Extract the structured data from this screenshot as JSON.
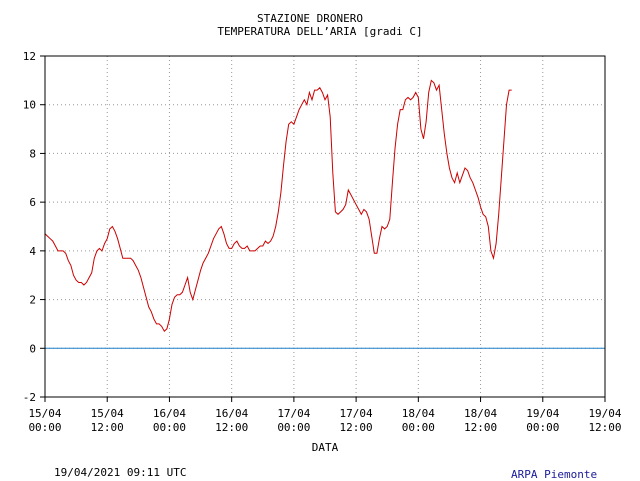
{
  "header": {
    "station": "STAZIONE DRONERO",
    "subtitle": "TEMPERATURA DELL’ARIA [gradi C]"
  },
  "footer": {
    "timestamp": "19/04/2021 09:11 UTC",
    "credit": "ARPA Piemonte"
  },
  "colors": {
    "series": "#cc0000",
    "zero_line": "#1f7fc8",
    "grid": "#999999"
  },
  "chart_data": {
    "type": "line",
    "title": "STAZIONE DRONERO",
    "subtitle": "TEMPERATURA DELL’ARIA [gradi C]",
    "xlabel": "DATA",
    "ylabel": "",
    "xlim": [
      0,
      108
    ],
    "ylim": [
      -2,
      12
    ],
    "grid": true,
    "yticks": [
      -2,
      0,
      2,
      4,
      6,
      8,
      10,
      12
    ],
    "xticks": [
      {
        "x": 0,
        "line1": "15/04",
        "line2": "00:00"
      },
      {
        "x": 12,
        "line1": "15/04",
        "line2": "12:00"
      },
      {
        "x": 24,
        "line1": "16/04",
        "line2": "00:00"
      },
      {
        "x": 36,
        "line1": "16/04",
        "line2": "12:00"
      },
      {
        "x": 48,
        "line1": "17/04",
        "line2": "00:00"
      },
      {
        "x": 60,
        "line1": "17/04",
        "line2": "12:00"
      },
      {
        "x": 72,
        "line1": "18/04",
        "line2": "00:00"
      },
      {
        "x": 84,
        "line1": "18/04",
        "line2": "12:00"
      },
      {
        "x": 96,
        "line1": "19/04",
        "line2": "00:00"
      },
      {
        "x": 108,
        "line1": "19/04",
        "line2": "12:00"
      }
    ],
    "reference_line": 0,
    "series": [
      {
        "values": [
          [
            0,
            4.7
          ],
          [
            0.5,
            4.6
          ],
          [
            1,
            4.5
          ],
          [
            1.5,
            4.4
          ],
          [
            2,
            4.2
          ],
          [
            2.5,
            4.0
          ],
          [
            3,
            4.0
          ],
          [
            3.5,
            4.0
          ],
          [
            4,
            3.9
          ],
          [
            4.5,
            3.6
          ],
          [
            5,
            3.4
          ],
          [
            5.5,
            3.0
          ],
          [
            6,
            2.8
          ],
          [
            6.5,
            2.7
          ],
          [
            7,
            2.7
          ],
          [
            7.5,
            2.6
          ],
          [
            8,
            2.7
          ],
          [
            8.5,
            2.9
          ],
          [
            9,
            3.1
          ],
          [
            9.5,
            3.7
          ],
          [
            10,
            4.0
          ],
          [
            10.5,
            4.1
          ],
          [
            11,
            4.0
          ],
          [
            11.5,
            4.3
          ],
          [
            12,
            4.5
          ],
          [
            12.5,
            4.9
          ],
          [
            13,
            5.0
          ],
          [
            13.5,
            4.8
          ],
          [
            14,
            4.5
          ],
          [
            14.5,
            4.1
          ],
          [
            15,
            3.7
          ],
          [
            15.5,
            3.7
          ],
          [
            16,
            3.7
          ],
          [
            16.5,
            3.7
          ],
          [
            17,
            3.6
          ],
          [
            17.5,
            3.4
          ],
          [
            18,
            3.2
          ],
          [
            18.5,
            2.9
          ],
          [
            19,
            2.5
          ],
          [
            19.5,
            2.1
          ],
          [
            20,
            1.7
          ],
          [
            20.5,
            1.5
          ],
          [
            21,
            1.2
          ],
          [
            21.5,
            1.0
          ],
          [
            22,
            1.0
          ],
          [
            22.5,
            0.9
          ],
          [
            23,
            0.7
          ],
          [
            23.5,
            0.8
          ],
          [
            24,
            1.2
          ],
          [
            24.5,
            1.8
          ],
          [
            25,
            2.1
          ],
          [
            25.5,
            2.2
          ],
          [
            26,
            2.2
          ],
          [
            26.5,
            2.3
          ],
          [
            27,
            2.6
          ],
          [
            27.5,
            2.9
          ],
          [
            28,
            2.3
          ],
          [
            28.5,
            2.0
          ],
          [
            29,
            2.4
          ],
          [
            29.5,
            2.8
          ],
          [
            30,
            3.2
          ],
          [
            30.5,
            3.5
          ],
          [
            31,
            3.7
          ],
          [
            31.5,
            3.9
          ],
          [
            32,
            4.2
          ],
          [
            32.5,
            4.5
          ],
          [
            33,
            4.7
          ],
          [
            33.5,
            4.9
          ],
          [
            34,
            5.0
          ],
          [
            34.5,
            4.7
          ],
          [
            35,
            4.3
          ],
          [
            35.5,
            4.1
          ],
          [
            36,
            4.1
          ],
          [
            36.5,
            4.3
          ],
          [
            37,
            4.4
          ],
          [
            37.5,
            4.2
          ],
          [
            38,
            4.1
          ],
          [
            38.5,
            4.1
          ],
          [
            39,
            4.2
          ],
          [
            39.5,
            4.0
          ],
          [
            40,
            4.0
          ],
          [
            40.5,
            4.0
          ],
          [
            41,
            4.1
          ],
          [
            41.5,
            4.2
          ],
          [
            42,
            4.2
          ],
          [
            42.5,
            4.4
          ],
          [
            43,
            4.3
          ],
          [
            43.5,
            4.4
          ],
          [
            44,
            4.6
          ],
          [
            44.5,
            5.0
          ],
          [
            45,
            5.6
          ],
          [
            45.5,
            6.4
          ],
          [
            46,
            7.5
          ],
          [
            46.5,
            8.5
          ],
          [
            47,
            9.2
          ],
          [
            47.5,
            9.3
          ],
          [
            48,
            9.2
          ],
          [
            48.5,
            9.5
          ],
          [
            49,
            9.8
          ],
          [
            49.5,
            10.0
          ],
          [
            50,
            10.2
          ],
          [
            50.5,
            10.0
          ],
          [
            51,
            10.5
          ],
          [
            51.5,
            10.2
          ],
          [
            52,
            10.6
          ],
          [
            52.5,
            10.6
          ],
          [
            53,
            10.7
          ],
          [
            53.5,
            10.5
          ],
          [
            54,
            10.2
          ],
          [
            54.5,
            10.4
          ],
          [
            55,
            9.5
          ],
          [
            55.5,
            7.2
          ],
          [
            56,
            5.6
          ],
          [
            56.5,
            5.5
          ],
          [
            57,
            5.6
          ],
          [
            57.5,
            5.7
          ],
          [
            58,
            5.9
          ],
          [
            58.5,
            6.5
          ],
          [
            59,
            6.3
          ],
          [
            59.5,
            6.1
          ],
          [
            60,
            5.9
          ],
          [
            60.5,
            5.7
          ],
          [
            61,
            5.5
          ],
          [
            61.5,
            5.7
          ],
          [
            62,
            5.6
          ],
          [
            62.5,
            5.3
          ],
          [
            63,
            4.6
          ],
          [
            63.5,
            3.9
          ],
          [
            64,
            3.9
          ],
          [
            64.5,
            4.5
          ],
          [
            65,
            5.0
          ],
          [
            65.5,
            4.9
          ],
          [
            66,
            5.0
          ],
          [
            66.5,
            5.3
          ],
          [
            67,
            6.8
          ],
          [
            67.5,
            8.2
          ],
          [
            68,
            9.2
          ],
          [
            68.5,
            9.8
          ],
          [
            69,
            9.8
          ],
          [
            69.5,
            10.2
          ],
          [
            70,
            10.3
          ],
          [
            70.5,
            10.2
          ],
          [
            71,
            10.3
          ],
          [
            71.5,
            10.5
          ],
          [
            72,
            10.3
          ],
          [
            72.5,
            9.0
          ],
          [
            73,
            8.6
          ],
          [
            73.5,
            9.3
          ],
          [
            74,
            10.5
          ],
          [
            74.5,
            11.0
          ],
          [
            75,
            10.9
          ],
          [
            75.5,
            10.6
          ],
          [
            76,
            10.8
          ],
          [
            76.5,
            9.8
          ],
          [
            77,
            8.8
          ],
          [
            77.5,
            8.0
          ],
          [
            78,
            7.4
          ],
          [
            78.5,
            7.0
          ],
          [
            79,
            6.8
          ],
          [
            79.5,
            7.2
          ],
          [
            80,
            6.8
          ],
          [
            80.5,
            7.1
          ],
          [
            81,
            7.4
          ],
          [
            81.5,
            7.3
          ],
          [
            82,
            7.0
          ],
          [
            82.5,
            6.8
          ],
          [
            83,
            6.5
          ],
          [
            83.5,
            6.2
          ],
          [
            84,
            5.8
          ],
          [
            84.5,
            5.5
          ],
          [
            85,
            5.4
          ],
          [
            85.5,
            5.0
          ],
          [
            86,
            4.0
          ],
          [
            86.5,
            3.7
          ],
          [
            87,
            4.3
          ],
          [
            87.5,
            5.5
          ],
          [
            88,
            7.0
          ],
          [
            88.5,
            8.5
          ],
          [
            89,
            10.0
          ],
          [
            89.5,
            10.6
          ],
          [
            90,
            10.6
          ]
        ]
      }
    ]
  }
}
